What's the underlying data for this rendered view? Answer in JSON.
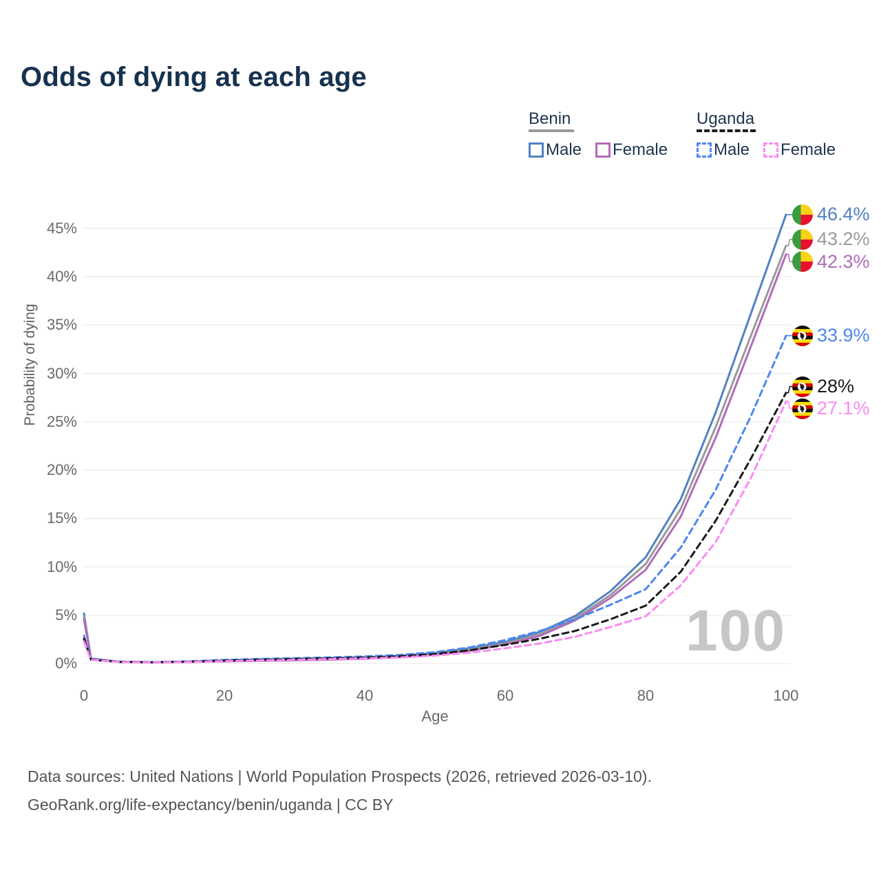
{
  "title": "Odds of dying at each age",
  "legend": {
    "groups": [
      {
        "label": "Benin",
        "line_style": "solid",
        "underline_color": "#9a9a9a",
        "items": [
          {
            "label": "Male",
            "color": "#5181c2",
            "dashed": false
          },
          {
            "label": "Female",
            "color": "#b06cb8",
            "dashed": false
          }
        ]
      },
      {
        "label": "Uganda",
        "line_style": "dashed",
        "underline_color": "#1a1a1a",
        "items": [
          {
            "label": "Male",
            "color": "#4c86f0",
            "dashed": true
          },
          {
            "label": "Female",
            "color": "#fb8af2",
            "dashed": true
          }
        ]
      }
    ]
  },
  "watermark": "100",
  "footer": {
    "line1": "Data sources: United Nations | World Population Prospects (2026, retrieved 2026-03-10).",
    "line2": "GeoRank.org/life-expectancy/benin/uganda | CC BY"
  },
  "colors": {
    "title_text": "#17324f",
    "axis_text": "#696969",
    "gridline": "#ececec",
    "watermark": "#c6c6c6",
    "benin_male": "#5181c2",
    "benin_both": "#9a9a9a",
    "benin_female": "#b06cb8",
    "uganda_male": "#4c86f0",
    "uganda_both": "#1a1a1a",
    "uganda_female": "#fb8af2"
  },
  "chart_data": {
    "type": "line",
    "title": "Odds of dying at each age",
    "xlabel": "Age",
    "ylabel": "Probability of dying",
    "xlim": [
      0,
      100
    ],
    "ylim": [
      0,
      46.5
    ],
    "x_ticks": [
      0,
      20,
      40,
      60,
      80,
      100
    ],
    "y_ticks": [
      0,
      5,
      10,
      15,
      20,
      25,
      30,
      35,
      40,
      45
    ],
    "y_tick_suffix": "%",
    "grid": "horizontal",
    "legend_position": "top-right",
    "x": [
      0,
      1,
      5,
      10,
      15,
      20,
      25,
      30,
      35,
      40,
      45,
      50,
      55,
      60,
      65,
      70,
      75,
      80,
      85,
      90,
      95,
      100
    ],
    "series": [
      {
        "name": "Benin Male",
        "country": "Benin",
        "sex": "Male",
        "color": "#5181c2",
        "dashed": false,
        "flag": "benin",
        "end_label": "46.4%",
        "end_value": 46.4,
        "label_value": 46.4,
        "values": [
          5.2,
          0.55,
          0.22,
          0.17,
          0.22,
          0.3,
          0.36,
          0.42,
          0.5,
          0.62,
          0.8,
          1.1,
          1.6,
          2.25,
          3.3,
          4.95,
          7.5,
          11.0,
          17.0,
          26.0,
          36.2,
          46.4
        ]
      },
      {
        "name": "Benin Both sexes",
        "country": "Benin",
        "sex": "Both",
        "color": "#9a9a9a",
        "dashed": false,
        "flag": "benin",
        "end_label": "43.2%",
        "end_value": 43.2,
        "label_value": 43.85,
        "values": [
          4.9,
          0.52,
          0.21,
          0.16,
          0.2,
          0.27,
          0.33,
          0.39,
          0.46,
          0.57,
          0.74,
          1.0,
          1.45,
          2.1,
          3.05,
          4.7,
          7.1,
          10.3,
          16.0,
          24.5,
          33.9,
          43.2
        ]
      },
      {
        "name": "Benin Female",
        "country": "Benin",
        "sex": "Female",
        "color": "#b06cb8",
        "dashed": false,
        "flag": "benin",
        "end_label": "42.3%",
        "end_value": 42.3,
        "label_value": 41.55,
        "values": [
          4.6,
          0.5,
          0.2,
          0.15,
          0.18,
          0.24,
          0.3,
          0.36,
          0.43,
          0.52,
          0.68,
          0.92,
          1.35,
          2.0,
          2.9,
          4.5,
          6.8,
          9.7,
          15.2,
          23.4,
          32.8,
          42.3
        ]
      },
      {
        "name": "Uganda Male",
        "country": "Uganda",
        "sex": "Male",
        "color": "#4c86f0",
        "dashed": true,
        "flag": "uganda",
        "end_label": "33.9%",
        "end_value": 33.9,
        "label_value": 33.9,
        "values": [
          2.9,
          0.45,
          0.2,
          0.16,
          0.25,
          0.4,
          0.5,
          0.58,
          0.66,
          0.76,
          0.92,
          1.2,
          1.7,
          2.45,
          3.4,
          4.6,
          6.1,
          7.7,
          12.0,
          18.0,
          25.6,
          33.9
        ]
      },
      {
        "name": "Uganda Both sexes",
        "country": "Uganda",
        "sex": "Both",
        "color": "#1a1a1a",
        "dashed": true,
        "flag": "uganda",
        "end_label": "28%",
        "end_value": 28.0,
        "label_value": 28.65,
        "values": [
          2.6,
          0.42,
          0.19,
          0.15,
          0.22,
          0.33,
          0.42,
          0.5,
          0.57,
          0.65,
          0.78,
          1.0,
          1.4,
          1.95,
          2.6,
          3.4,
          4.6,
          6.0,
          9.5,
          14.8,
          21.2,
          28.0
        ]
      },
      {
        "name": "Uganda Female",
        "country": "Uganda",
        "sex": "Female",
        "color": "#fb8af2",
        "dashed": true,
        "flag": "uganda",
        "end_label": "27.1%",
        "end_value": 27.1,
        "label_value": 26.35,
        "values": [
          2.3,
          0.4,
          0.18,
          0.14,
          0.19,
          0.27,
          0.34,
          0.41,
          0.48,
          0.55,
          0.65,
          0.85,
          1.15,
          1.6,
          2.1,
          2.8,
          3.8,
          4.9,
          8.1,
          12.6,
          19.2,
          27.1
        ]
      }
    ]
  }
}
